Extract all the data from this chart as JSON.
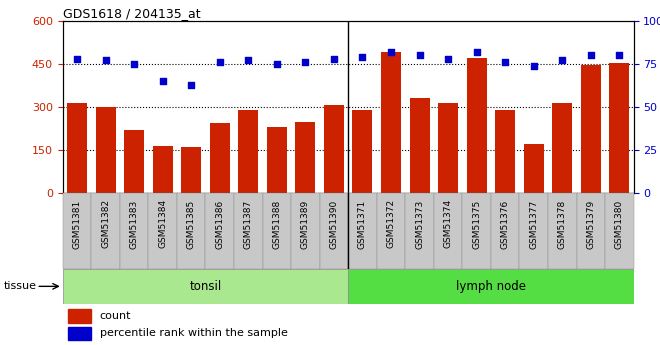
{
  "title": "GDS1618 / 204135_at",
  "categories": [
    "GSM51381",
    "GSM51382",
    "GSM51383",
    "GSM51384",
    "GSM51385",
    "GSM51386",
    "GSM51387",
    "GSM51388",
    "GSM51389",
    "GSM51390",
    "GSM51371",
    "GSM51372",
    "GSM51373",
    "GSM51374",
    "GSM51375",
    "GSM51376",
    "GSM51377",
    "GSM51378",
    "GSM51379",
    "GSM51380"
  ],
  "counts": [
    315,
    300,
    220,
    165,
    162,
    245,
    290,
    230,
    248,
    308,
    290,
    490,
    330,
    315,
    470,
    290,
    170,
    315,
    447,
    452
  ],
  "percentiles": [
    78,
    77,
    75,
    65,
    63,
    76,
    77,
    75,
    76,
    78,
    79,
    82,
    80,
    78,
    82,
    76,
    74,
    77,
    80,
    80
  ],
  "tonsil_count": 10,
  "lymph_count": 10,
  "bar_color": "#cc2200",
  "dot_color": "#0000cc",
  "left_ylim": [
    0,
    600
  ],
  "left_yticks": [
    0,
    150,
    300,
    450,
    600
  ],
  "right_ylim": [
    0,
    100
  ],
  "right_yticks": [
    0,
    25,
    50,
    75,
    100
  ],
  "grid_lines": [
    150,
    300,
    450
  ],
  "tonsil_color": "#aae890",
  "lymph_color": "#55dd44",
  "tissue_label": "tissue",
  "tonsil_label": "tonsil",
  "lymph_label": "lymph node",
  "legend_count": "count",
  "legend_percentile": "percentile rank within the sample",
  "xtick_bg": "#c8c8c8",
  "plot_bg": "#ffffff"
}
